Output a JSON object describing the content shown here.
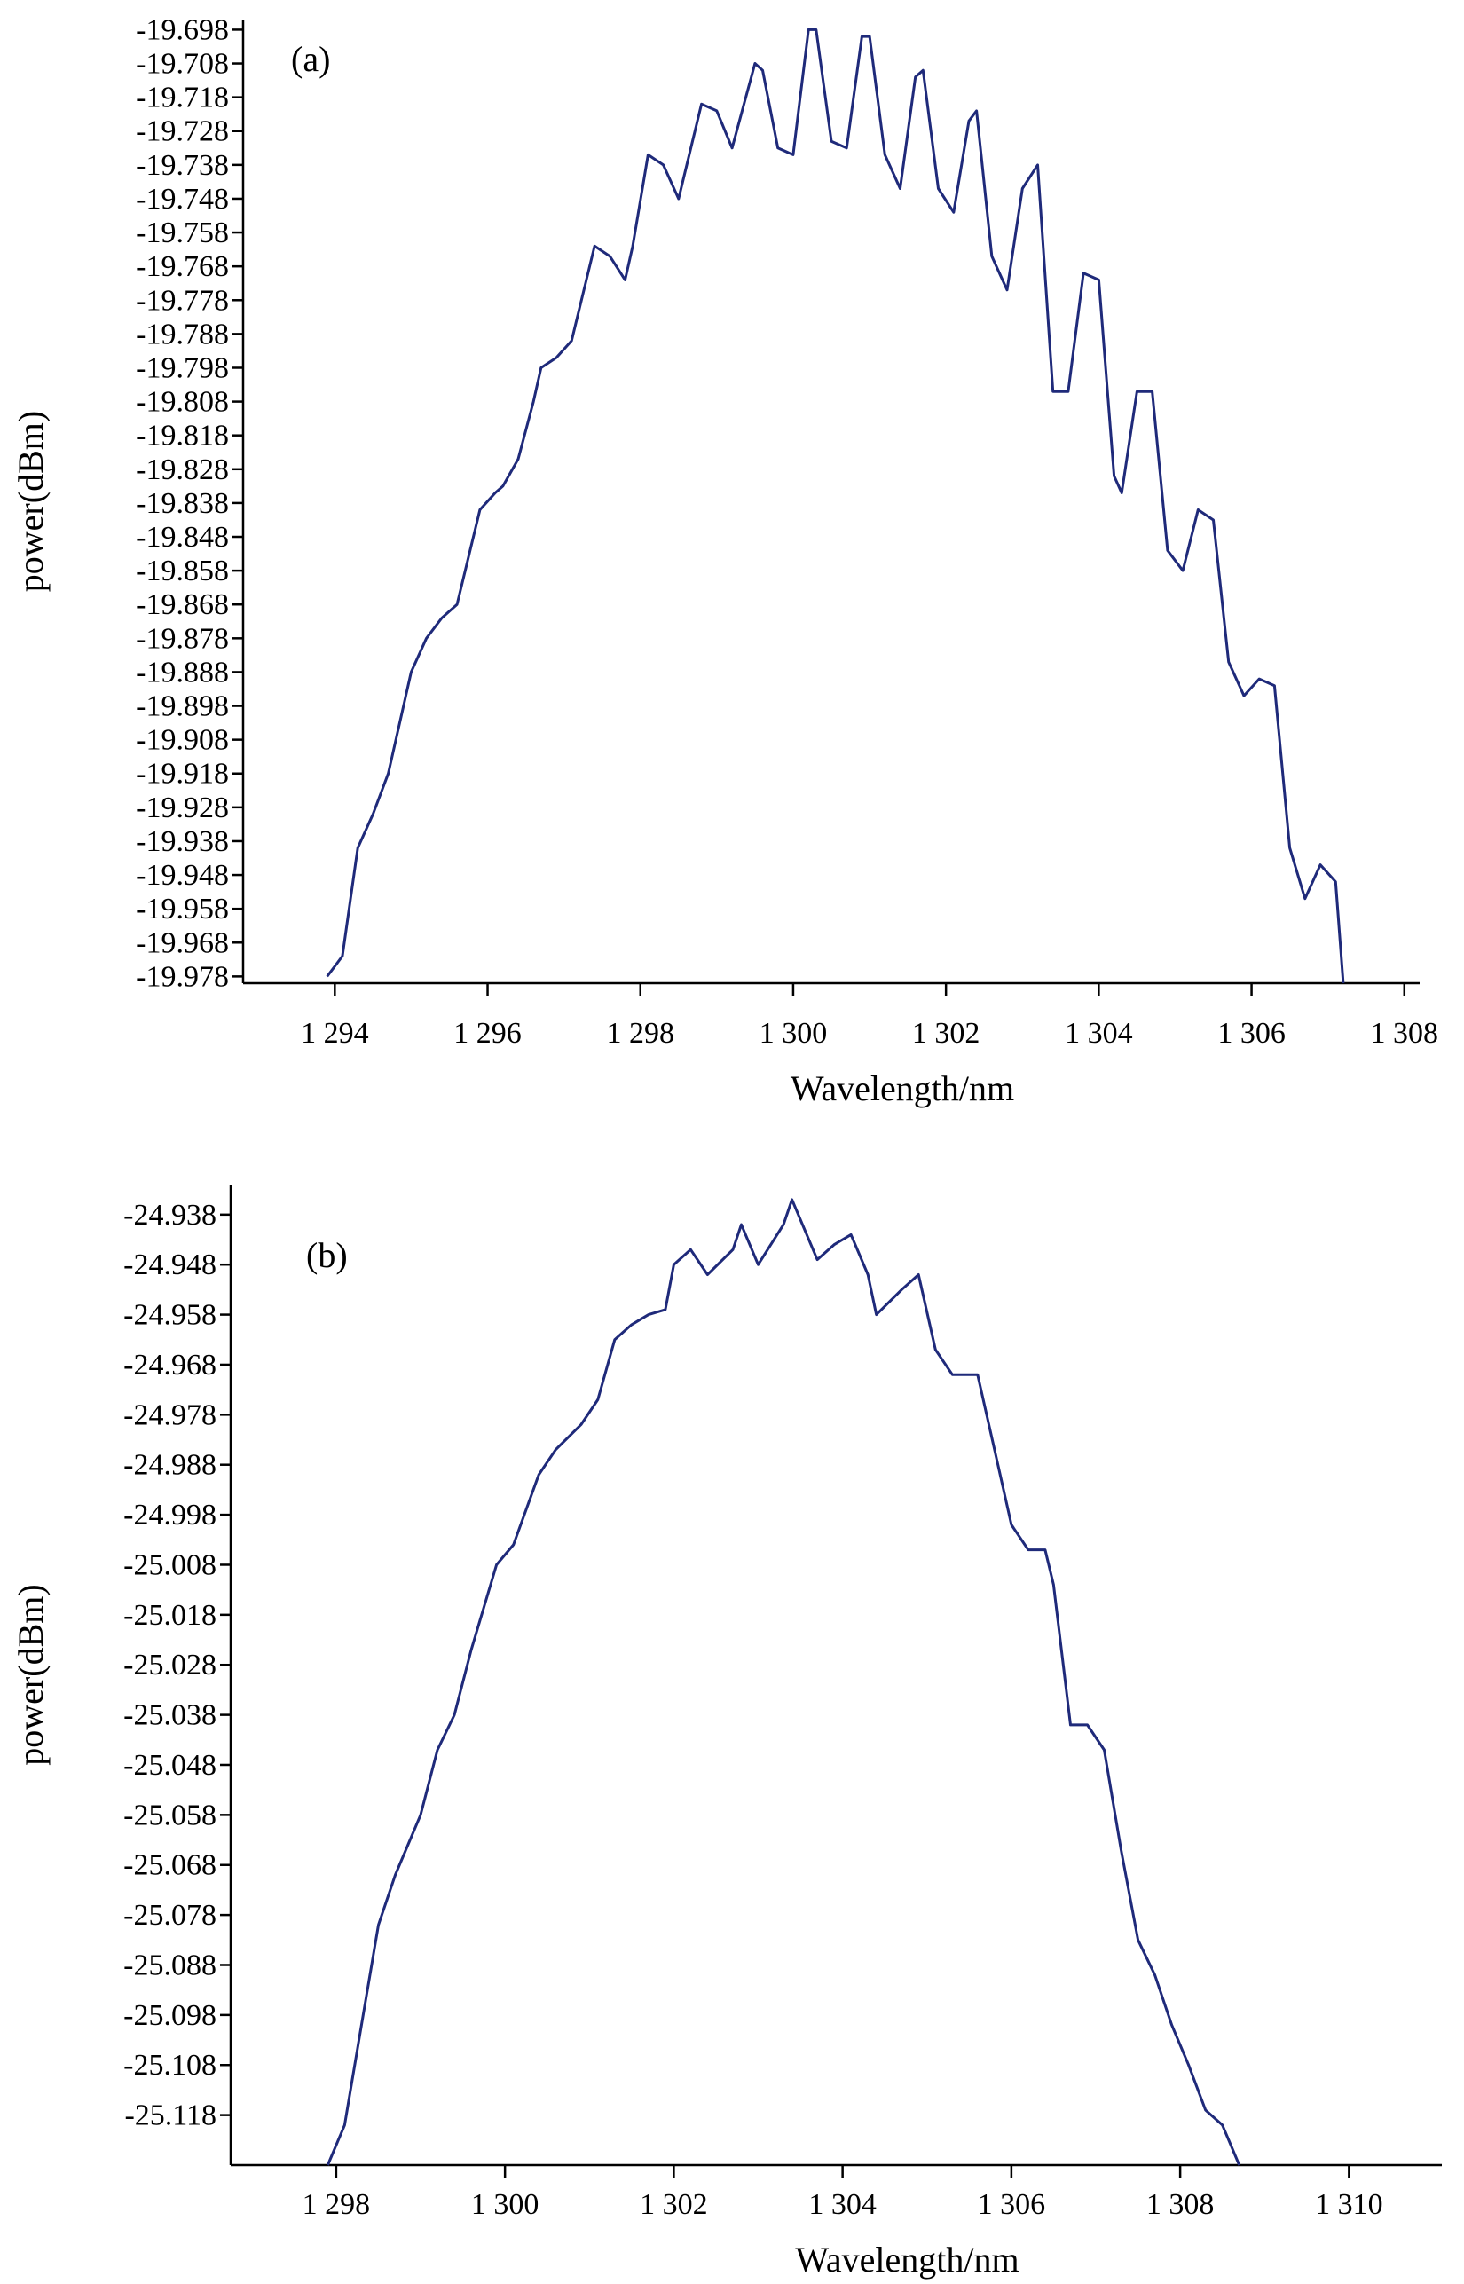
{
  "colors": {
    "line": "#1f2a7a",
    "axis": "#000000",
    "background": "#ffffff"
  },
  "chart_data": [
    {
      "type": "line",
      "panel_label": "(a)",
      "xlabel": "Wavelength/nm",
      "ylabel": "power(dBm)",
      "xlim": [
        1292.8,
        1308.2
      ],
      "ylim": [
        -19.98,
        -19.695
      ],
      "x_ticks": [
        1294,
        1296,
        1298,
        1300,
        1302,
        1304,
        1306,
        1308
      ],
      "x_tick_labels": [
        "1 294",
        "1 296",
        "1 298",
        "1 300",
        "1 302",
        "1 304",
        "1 306",
        "1 308"
      ],
      "y_ticks": [
        -19.698,
        -19.708,
        -19.718,
        -19.728,
        -19.738,
        -19.748,
        -19.758,
        -19.768,
        -19.778,
        -19.788,
        -19.798,
        -19.808,
        -19.818,
        -19.828,
        -19.838,
        -19.848,
        -19.858,
        -19.868,
        -19.878,
        -19.888,
        -19.898,
        -19.908,
        -19.918,
        -19.928,
        -19.938,
        -19.948,
        -19.958,
        -19.968,
        -19.978
      ],
      "y_tick_labels": [
        "-19.698",
        "-19.708",
        "-19.718",
        "-19.728",
        "-19.738",
        "-19.748",
        "-19.758",
        "-19.768",
        "-19.778",
        "-19.788",
        "-19.798",
        "-19.808",
        "-19.818",
        "-19.828",
        "-19.838",
        "-19.848",
        "-19.858",
        "-19.868",
        "-19.878",
        "-19.888",
        "-19.898",
        "-19.908",
        "-19.918",
        "-19.928",
        "-19.938",
        "-19.948",
        "-19.958",
        "-19.968",
        "-19.978"
      ],
      "grid": false,
      "series": [
        {
          "x": [
            1293.9,
            1294.1,
            1294.3,
            1294.5,
            1294.7,
            1295.0,
            1295.2,
            1295.4,
            1295.6,
            1295.9,
            1296.1,
            1296.2,
            1296.4,
            1296.6,
            1296.7,
            1296.9,
            1297.1,
            1297.4,
            1297.6,
            1297.8,
            1297.9,
            1298.1,
            1298.3,
            1298.5,
            1298.8,
            1299.0,
            1299.2,
            1299.5,
            1299.6,
            1299.8,
            1300.0,
            1300.2,
            1300.3,
            1300.5,
            1300.7,
            1300.9,
            1301.0,
            1301.2,
            1301.4,
            1301.6,
            1301.7,
            1301.9,
            1302.1,
            1302.3,
            1302.4,
            1302.6,
            1302.8,
            1303.0,
            1303.2,
            1303.4,
            1303.6,
            1303.8,
            1304.0,
            1304.2,
            1304.3,
            1304.5,
            1304.7,
            1304.9,
            1305.1,
            1305.3,
            1305.5,
            1305.7,
            1305.9,
            1306.1,
            1306.3,
            1306.5,
            1306.7,
            1306.9,
            1307.1,
            1307.2
          ],
          "y": [
            -19.978,
            -19.972,
            -19.94,
            -19.93,
            -19.918,
            -19.888,
            -19.878,
            -19.872,
            -19.868,
            -19.84,
            -19.835,
            -19.833,
            -19.825,
            -19.808,
            -19.798,
            -19.795,
            -19.79,
            -19.762,
            -19.765,
            -19.772,
            -19.762,
            -19.735,
            -19.738,
            -19.748,
            -19.72,
            -19.722,
            -19.733,
            -19.708,
            -19.71,
            -19.733,
            -19.735,
            -19.698,
            -19.698,
            -19.731,
            -19.733,
            -19.7,
            -19.7,
            -19.735,
            -19.745,
            -19.712,
            -19.71,
            -19.745,
            -19.752,
            -19.725,
            -19.722,
            -19.765,
            -19.775,
            -19.745,
            -19.738,
            -19.805,
            -19.805,
            -19.77,
            -19.772,
            -19.83,
            -19.835,
            -19.805,
            -19.805,
            -19.852,
            -19.858,
            -19.84,
            -19.843,
            -19.885,
            -19.895,
            -19.89,
            -19.892,
            -19.94,
            -19.955,
            -19.945,
            -19.95,
            -19.98
          ]
        }
      ]
    },
    {
      "type": "line",
      "panel_label": "(b)",
      "xlabel": "Wavelength/nm",
      "ylabel": "power(dBm)",
      "xlim": [
        1296.75,
        1311.1
      ],
      "ylim": [
        -25.128,
        -24.932
      ],
      "x_ticks": [
        1298,
        1300,
        1302,
        1304,
        1306,
        1308,
        1310
      ],
      "x_tick_labels": [
        "1 298",
        "1 300",
        "1 302",
        "1 304",
        "1 306",
        "1 308",
        "1 310"
      ],
      "y_ticks": [
        -24.938,
        -24.948,
        -24.958,
        -24.968,
        -24.978,
        -24.988,
        -24.998,
        -25.008,
        -25.018,
        -25.028,
        -25.038,
        -25.048,
        -25.058,
        -25.068,
        -25.078,
        -25.088,
        -25.098,
        -25.108,
        -25.118
      ],
      "y_tick_labels": [
        "-24.938",
        "-24.948",
        "-24.958",
        "-24.968",
        "-24.978",
        "-24.988",
        "-24.998",
        "-25.008",
        "-25.018",
        "-25.028",
        "-25.038",
        "-25.048",
        "-25.058",
        "-25.068",
        "-25.078",
        "-25.088",
        "-25.098",
        "-25.108",
        "-25.118"
      ],
      "grid": false,
      "series": [
        {
          "x": [
            1297.9,
            1298.1,
            1298.3,
            1298.5,
            1298.7,
            1299.0,
            1299.2,
            1299.4,
            1299.6,
            1299.9,
            1300.1,
            1300.4,
            1300.6,
            1300.9,
            1301.1,
            1301.3,
            1301.5,
            1301.7,
            1301.9,
            1302.0,
            1302.2,
            1302.4,
            1302.7,
            1302.8,
            1303.0,
            1303.3,
            1303.4,
            1303.7,
            1303.9,
            1304.1,
            1304.3,
            1304.4,
            1304.7,
            1304.9,
            1305.1,
            1305.3,
            1305.6,
            1305.8,
            1306.0,
            1306.2,
            1306.4,
            1306.5,
            1306.7,
            1306.9,
            1307.1,
            1307.3,
            1307.5,
            1307.7,
            1307.9,
            1308.1,
            1308.3,
            1308.5,
            1308.7
          ],
          "y": [
            -25.128,
            -25.12,
            -25.1,
            -25.08,
            -25.07,
            -25.058,
            -25.045,
            -25.038,
            -25.025,
            -25.008,
            -25.004,
            -24.99,
            -24.985,
            -24.98,
            -24.975,
            -24.963,
            -24.96,
            -24.958,
            -24.957,
            -24.948,
            -24.945,
            -24.95,
            -24.945,
            -24.94,
            -24.948,
            -24.94,
            -24.935,
            -24.947,
            -24.944,
            -24.942,
            -24.95,
            -24.958,
            -24.953,
            -24.95,
            -24.965,
            -24.97,
            -24.97,
            -24.985,
            -25.0,
            -25.005,
            -25.005,
            -25.012,
            -25.04,
            -25.04,
            -25.045,
            -25.065,
            -25.083,
            -25.09,
            -25.1,
            -25.108,
            -25.117,
            -25.12,
            -25.128
          ]
        }
      ]
    }
  ]
}
